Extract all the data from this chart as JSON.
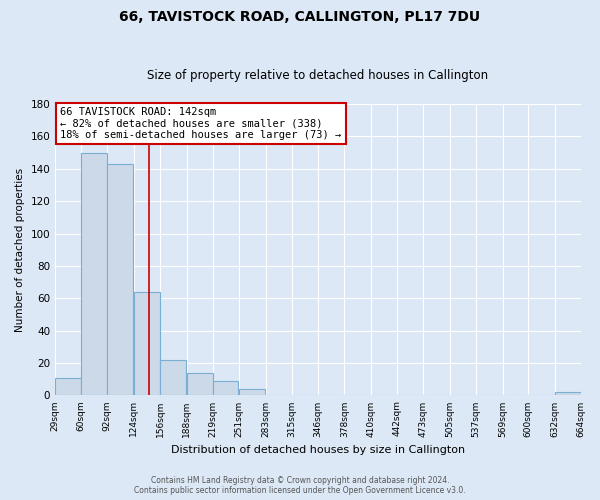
{
  "title": "66, TAVISTOCK ROAD, CALLINGTON, PL17 7DU",
  "subtitle": "Size of property relative to detached houses in Callington",
  "xlabel": "Distribution of detached houses by size in Callington",
  "ylabel": "Number of detached properties",
  "bar_left_edges": [
    29,
    60,
    92,
    124,
    156,
    188,
    219,
    251,
    283,
    315,
    346,
    378,
    410,
    442,
    473,
    505,
    537,
    569,
    600,
    632
  ],
  "bar_heights": [
    11,
    150,
    143,
    64,
    22,
    14,
    9,
    4,
    0,
    0,
    0,
    0,
    0,
    0,
    0,
    0,
    0,
    0,
    0,
    2
  ],
  "bin_width": 31,
  "bar_color": "#ccd9e8",
  "bar_edge_color": "#7aafd4",
  "tick_labels": [
    "29sqm",
    "60sqm",
    "92sqm",
    "124sqm",
    "156sqm",
    "188sqm",
    "219sqm",
    "251sqm",
    "283sqm",
    "315sqm",
    "346sqm",
    "378sqm",
    "410sqm",
    "442sqm",
    "473sqm",
    "505sqm",
    "537sqm",
    "569sqm",
    "600sqm",
    "632sqm",
    "664sqm"
  ],
  "ylim": [
    0,
    180
  ],
  "yticks": [
    0,
    20,
    40,
    60,
    80,
    100,
    120,
    140,
    160,
    180
  ],
  "property_size": 142,
  "property_label": "66 TAVISTOCK ROAD: 142sqm",
  "annotation_line1": "← 82% of detached houses are smaller (338)",
  "annotation_line2": "18% of semi-detached houses are larger (73) →",
  "vline_color": "#cc0000",
  "annotation_box_color": "#ffffff",
  "annotation_box_edge": "#cc0000",
  "footer_line1": "Contains HM Land Registry data © Crown copyright and database right 2024.",
  "footer_line2": "Contains public sector information licensed under the Open Government Licence v3.0.",
  "background_color": "#dce8f5",
  "plot_background": "#dce8f5",
  "grid_color": "#ffffff",
  "title_fontsize": 10,
  "subtitle_fontsize": 8.5,
  "xlabel_fontsize": 8,
  "ylabel_fontsize": 7.5,
  "tick_fontsize": 6.5,
  "annotation_fontsize": 7.5,
  "footer_fontsize": 5.5
}
